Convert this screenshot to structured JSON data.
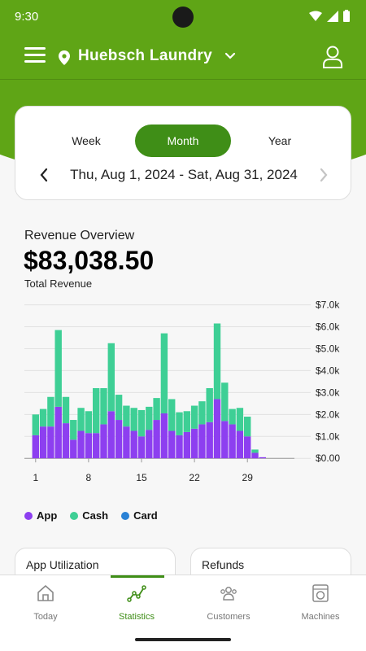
{
  "status_bar": {
    "time": "9:30"
  },
  "header": {
    "location": "Huebsch Laundry"
  },
  "period": {
    "tabs": [
      {
        "label": "Week"
      },
      {
        "label": "Month"
      },
      {
        "label": "Year"
      }
    ],
    "active_tab": "Month",
    "date_range": "Thu, Aug 1, 2024 - Sat, Aug 31, 2024"
  },
  "revenue": {
    "title": "Revenue Overview",
    "amount": "$83,038.50",
    "subtitle": "Total Revenue"
  },
  "chart_data": {
    "type": "bar",
    "stacked": true,
    "x": [
      1,
      2,
      3,
      4,
      5,
      6,
      7,
      8,
      9,
      10,
      11,
      12,
      13,
      14,
      15,
      16,
      17,
      18,
      19,
      20,
      21,
      22,
      23,
      24,
      25,
      26,
      27,
      28,
      29,
      30,
      31
    ],
    "x_tick_labels": [
      "1",
      "8",
      "15",
      "22",
      "29"
    ],
    "y_tick_labels": [
      "$0.00",
      "$1.0k",
      "$2.0k",
      "$3.0k",
      "$4.0k",
      "$5.0k",
      "$6.0k",
      "$7.0k"
    ],
    "ylim": [
      0,
      7000
    ],
    "series": [
      {
        "name": "App",
        "color": "#8d3ff0",
        "values": [
          1050,
          1450,
          1450,
          2350,
          1600,
          850,
          1250,
          1150,
          1150,
          1550,
          2150,
          1750,
          1450,
          1250,
          1000,
          1300,
          1750,
          2050,
          1250,
          1050,
          1200,
          1350,
          1550,
          1650,
          2700,
          1700,
          1550,
          1250,
          1000,
          250,
          50
        ]
      },
      {
        "name": "Cash",
        "color": "#3ecf95",
        "values": [
          950,
          800,
          1350,
          3500,
          1200,
          900,
          1050,
          1000,
          2050,
          1650,
          3100,
          1150,
          950,
          1050,
          1200,
          1050,
          1000,
          3650,
          1450,
          1050,
          950,
          1050,
          1050,
          1550,
          3450,
          1750,
          700,
          1050,
          900,
          150,
          0
        ]
      },
      {
        "name": "Card",
        "color": "#2a82d6",
        "values": [
          0,
          0,
          0,
          0,
          0,
          0,
          0,
          0,
          0,
          0,
          0,
          0,
          0,
          0,
          0,
          0,
          0,
          0,
          0,
          0,
          0,
          0,
          0,
          0,
          0,
          0,
          0,
          0,
          0,
          0,
          0
        ]
      }
    ]
  },
  "legend": [
    {
      "label": "App",
      "color": "#8d3ff0"
    },
    {
      "label": "Cash",
      "color": "#3ecf95"
    },
    {
      "label": "Card",
      "color": "#2a82d6"
    }
  ],
  "cards": {
    "app_utilization": "App Utilization",
    "refunds": "Refunds"
  },
  "nav": {
    "items": [
      {
        "label": "Today",
        "icon": "home-icon"
      },
      {
        "label": "Statistics",
        "icon": "chart-icon"
      },
      {
        "label": "Customers",
        "icon": "users-icon"
      },
      {
        "label": "Machines",
        "icon": "washer-icon"
      }
    ],
    "active": "Statistics"
  },
  "colors": {
    "brand_green": "#5fa516",
    "accent_green": "#3f8e17",
    "app": "#8d3ff0",
    "cash": "#3ecf95",
    "card": "#2a82d6"
  }
}
